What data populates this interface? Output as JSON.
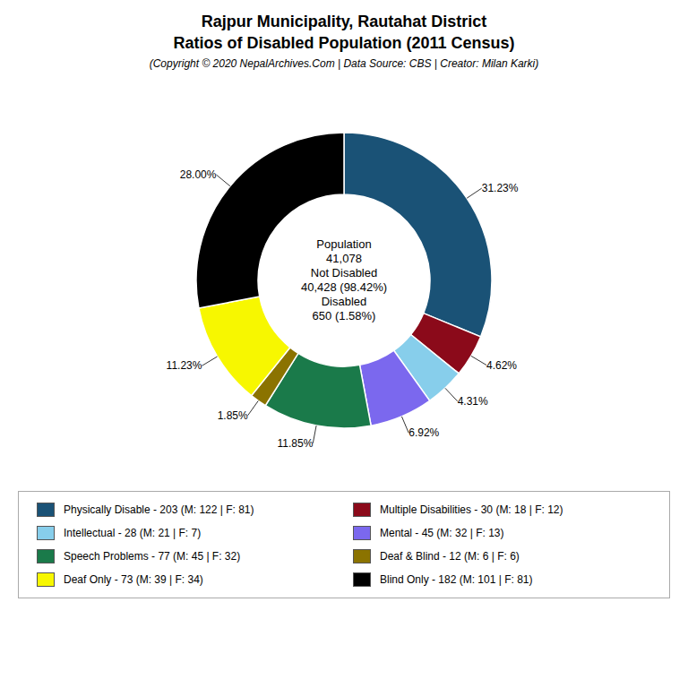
{
  "chart_data": {
    "type": "pie",
    "title": [
      "Rajpur Municipality, Rautahat District",
      "Ratios of Disabled Population (2011 Census)"
    ],
    "subtitle": "(Copyright © 2020 NepalArchives.Com | Data Source: CBS | Creator: Milan Karki)",
    "categories": [
      "Physically Disable - 203 (M: 122 | F: 81)",
      "Multiple Disabilities - 30 (M: 18 | F: 12)",
      "Intellectual - 28 (M: 21 | F: 7)",
      "Mental - 45 (M: 32 | F: 13)",
      "Speech Problems - 77 (M: 45 | F: 32)",
      "Deaf & Blind - 12 (M: 6 | F: 6)",
      "Deaf Only - 73 (M: 39 | F: 34)",
      "Blind Only - 182 (M: 101 | F: 81)"
    ],
    "values": [
      31.23,
      4.62,
      4.31,
      6.92,
      11.85,
      1.85,
      11.23,
      28.0
    ],
    "value_labels": [
      "31.23%",
      "4.62%",
      "4.31%",
      "6.92%",
      "11.85%",
      "1.85%",
      "11.23%",
      "28.00%"
    ],
    "colors": [
      "#1a5276",
      "#8b0a1a",
      "#87ceeb",
      "#7b68ee",
      "#1a7a4a",
      "#8b7300",
      "#f7f700",
      "#000000"
    ],
    "data_labels": true,
    "annotations": [
      "Population",
      "41,078",
      "Not Disabled",
      "40,428 (98.42%)",
      "Disabled",
      "650 (1.58%)"
    ],
    "legend": "bottom"
  }
}
